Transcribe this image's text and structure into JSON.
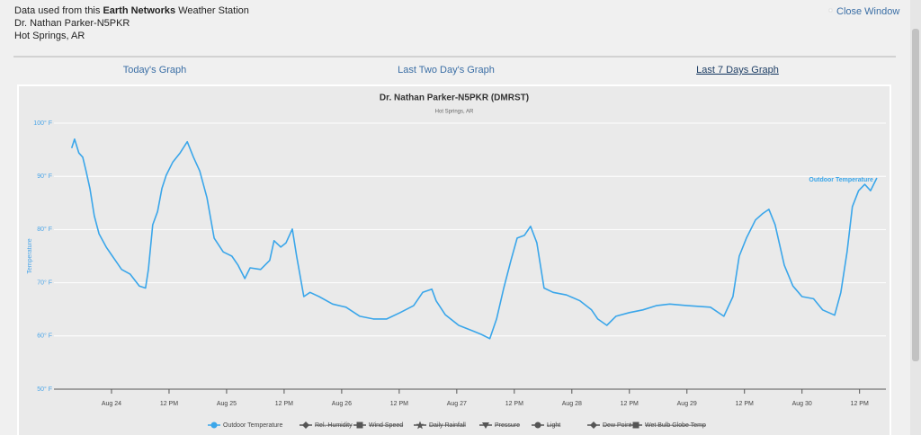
{
  "header": {
    "source_prefix": "Data used from this",
    "network": "Earth Networks",
    "source_suffix": "Weather Station",
    "station": "Dr. Nathan Parker-N5PKR",
    "location": "Hot Springs, AR",
    "close": "Close Window"
  },
  "tabs": [
    "Today's Graph",
    "Last Two Day's Graph",
    "Last 7 Days Graph"
  ],
  "chart_data": {
    "type": "line",
    "title": "Dr. Nathan Parker-N5PKR (DMRST)",
    "subtitle": "Hot Springs, AR",
    "y_label": "Temperature",
    "x": [
      -8.3,
      -7.7,
      -6.8,
      -6,
      -5.3,
      -4.5,
      -3.6,
      -2.6,
      -1.1,
      0.2,
      2.1,
      3.9,
      5.8,
      7.1,
      7.7,
      8.6,
      9.6,
      10.5,
      11.4,
      12.8,
      14.3,
      15.8,
      17.1,
      18.4,
      19.9,
      21.4,
      23.3,
      25.1,
      26.4,
      27.8,
      28.9,
      31.1,
      33,
      33.9,
      35.3,
      36.4,
      37.7,
      38.6,
      40.1,
      41.4,
      43.3,
      46.1,
      48.9,
      51.8,
      54.6,
      57.4,
      60.2,
      63,
      64.9,
      66.8,
      67.7,
      69.6,
      72.4,
      75.2,
      77.1,
      78.9,
      80.3,
      81.8,
      83.3,
      84.6,
      86.1,
      87.4,
      88.7,
      90.2,
      92.1,
      94.9,
      97.7,
      100.1,
      101.4,
      103.3,
      105.2,
      108,
      110.8,
      113.6,
      116.4,
      120.2,
      124.9,
      127.7,
      129.6,
      130.9,
      132.4,
      134.3,
      135.8,
      137.1,
      138.4,
      140.3,
      142.1,
      144,
      146.4,
      148.3,
      150.8,
      152.1,
      153.4,
      154.5,
      155.8,
      157.1,
      158.3,
      159.6
    ],
    "series": [
      {
        "name": "Outdoor Temperature",
        "color": "#3aa6ea",
        "values": [
          95.3,
          97,
          94.4,
          93.6,
          91,
          87.7,
          82.6,
          79.2,
          76.7,
          75,
          72.5,
          71.6,
          69.4,
          69,
          72.5,
          80.9,
          83.4,
          87.7,
          90.2,
          92.7,
          94.4,
          96.5,
          93.6,
          91,
          86,
          78.4,
          75.8,
          75,
          73.3,
          70.8,
          72.8,
          72.5,
          74.2,
          77.9,
          76.7,
          77.5,
          80.1,
          75,
          67.4,
          68.2,
          67.4,
          66,
          65.4,
          63.7,
          63.2,
          63.2,
          64.4,
          65.7,
          68.2,
          68.8,
          66.6,
          64,
          62,
          61,
          60.3,
          59.5,
          63.2,
          69,
          74.2,
          78.4,
          78.9,
          80.6,
          77.5,
          69,
          68.2,
          67.7,
          66.6,
          64.9,
          63.2,
          62,
          63.7,
          64.4,
          64.9,
          65.7,
          66,
          65.7,
          65.4,
          63.7,
          67.4,
          75,
          78.4,
          81.8,
          83,
          83.8,
          80.9,
          73.3,
          69.4,
          67.4,
          67,
          64.9,
          63.9,
          68.2,
          75.8,
          84.3,
          87.3,
          88.5,
          87.3,
          89.7
        ]
      }
    ],
    "hidden_series": [
      "Rel. Humidity",
      "Wind Speed",
      "Daily Rainfall",
      "Pressure",
      "Light",
      "Dew Point",
      "Wet Bulb Globe Temp"
    ],
    "hidden_color": "#555555",
    "xlim": [
      -12,
      161.5
    ],
    "xticks": [
      {
        "value": 0,
        "label": "Aug 24"
      },
      {
        "value": 12,
        "label": "12 PM"
      },
      {
        "value": 24,
        "label": "Aug 25"
      },
      {
        "value": 36,
        "label": "12 PM"
      },
      {
        "value": 48,
        "label": "Aug 26"
      },
      {
        "value": 60,
        "label": "12 PM"
      },
      {
        "value": 72,
        "label": "Aug 27"
      },
      {
        "value": 84,
        "label": "12 PM"
      },
      {
        "value": 96,
        "label": "Aug 28"
      },
      {
        "value": 108,
        "label": "12 PM"
      },
      {
        "value": 120,
        "label": "Aug 29"
      },
      {
        "value": 132,
        "label": "12 PM"
      },
      {
        "value": 144,
        "label": "Aug 30"
      },
      {
        "value": 156,
        "label": "12 PM"
      }
    ],
    "ylim": [
      50,
      100
    ],
    "yticks": [
      {
        "value": 50,
        "label": "50° F"
      },
      {
        "value": 60,
        "label": "60° F"
      },
      {
        "value": 70,
        "label": "70° F"
      },
      {
        "value": 80,
        "label": "80° F"
      },
      {
        "value": 90,
        "label": "90° F"
      },
      {
        "value": 100,
        "label": "100° F"
      }
    ],
    "grid": true
  }
}
